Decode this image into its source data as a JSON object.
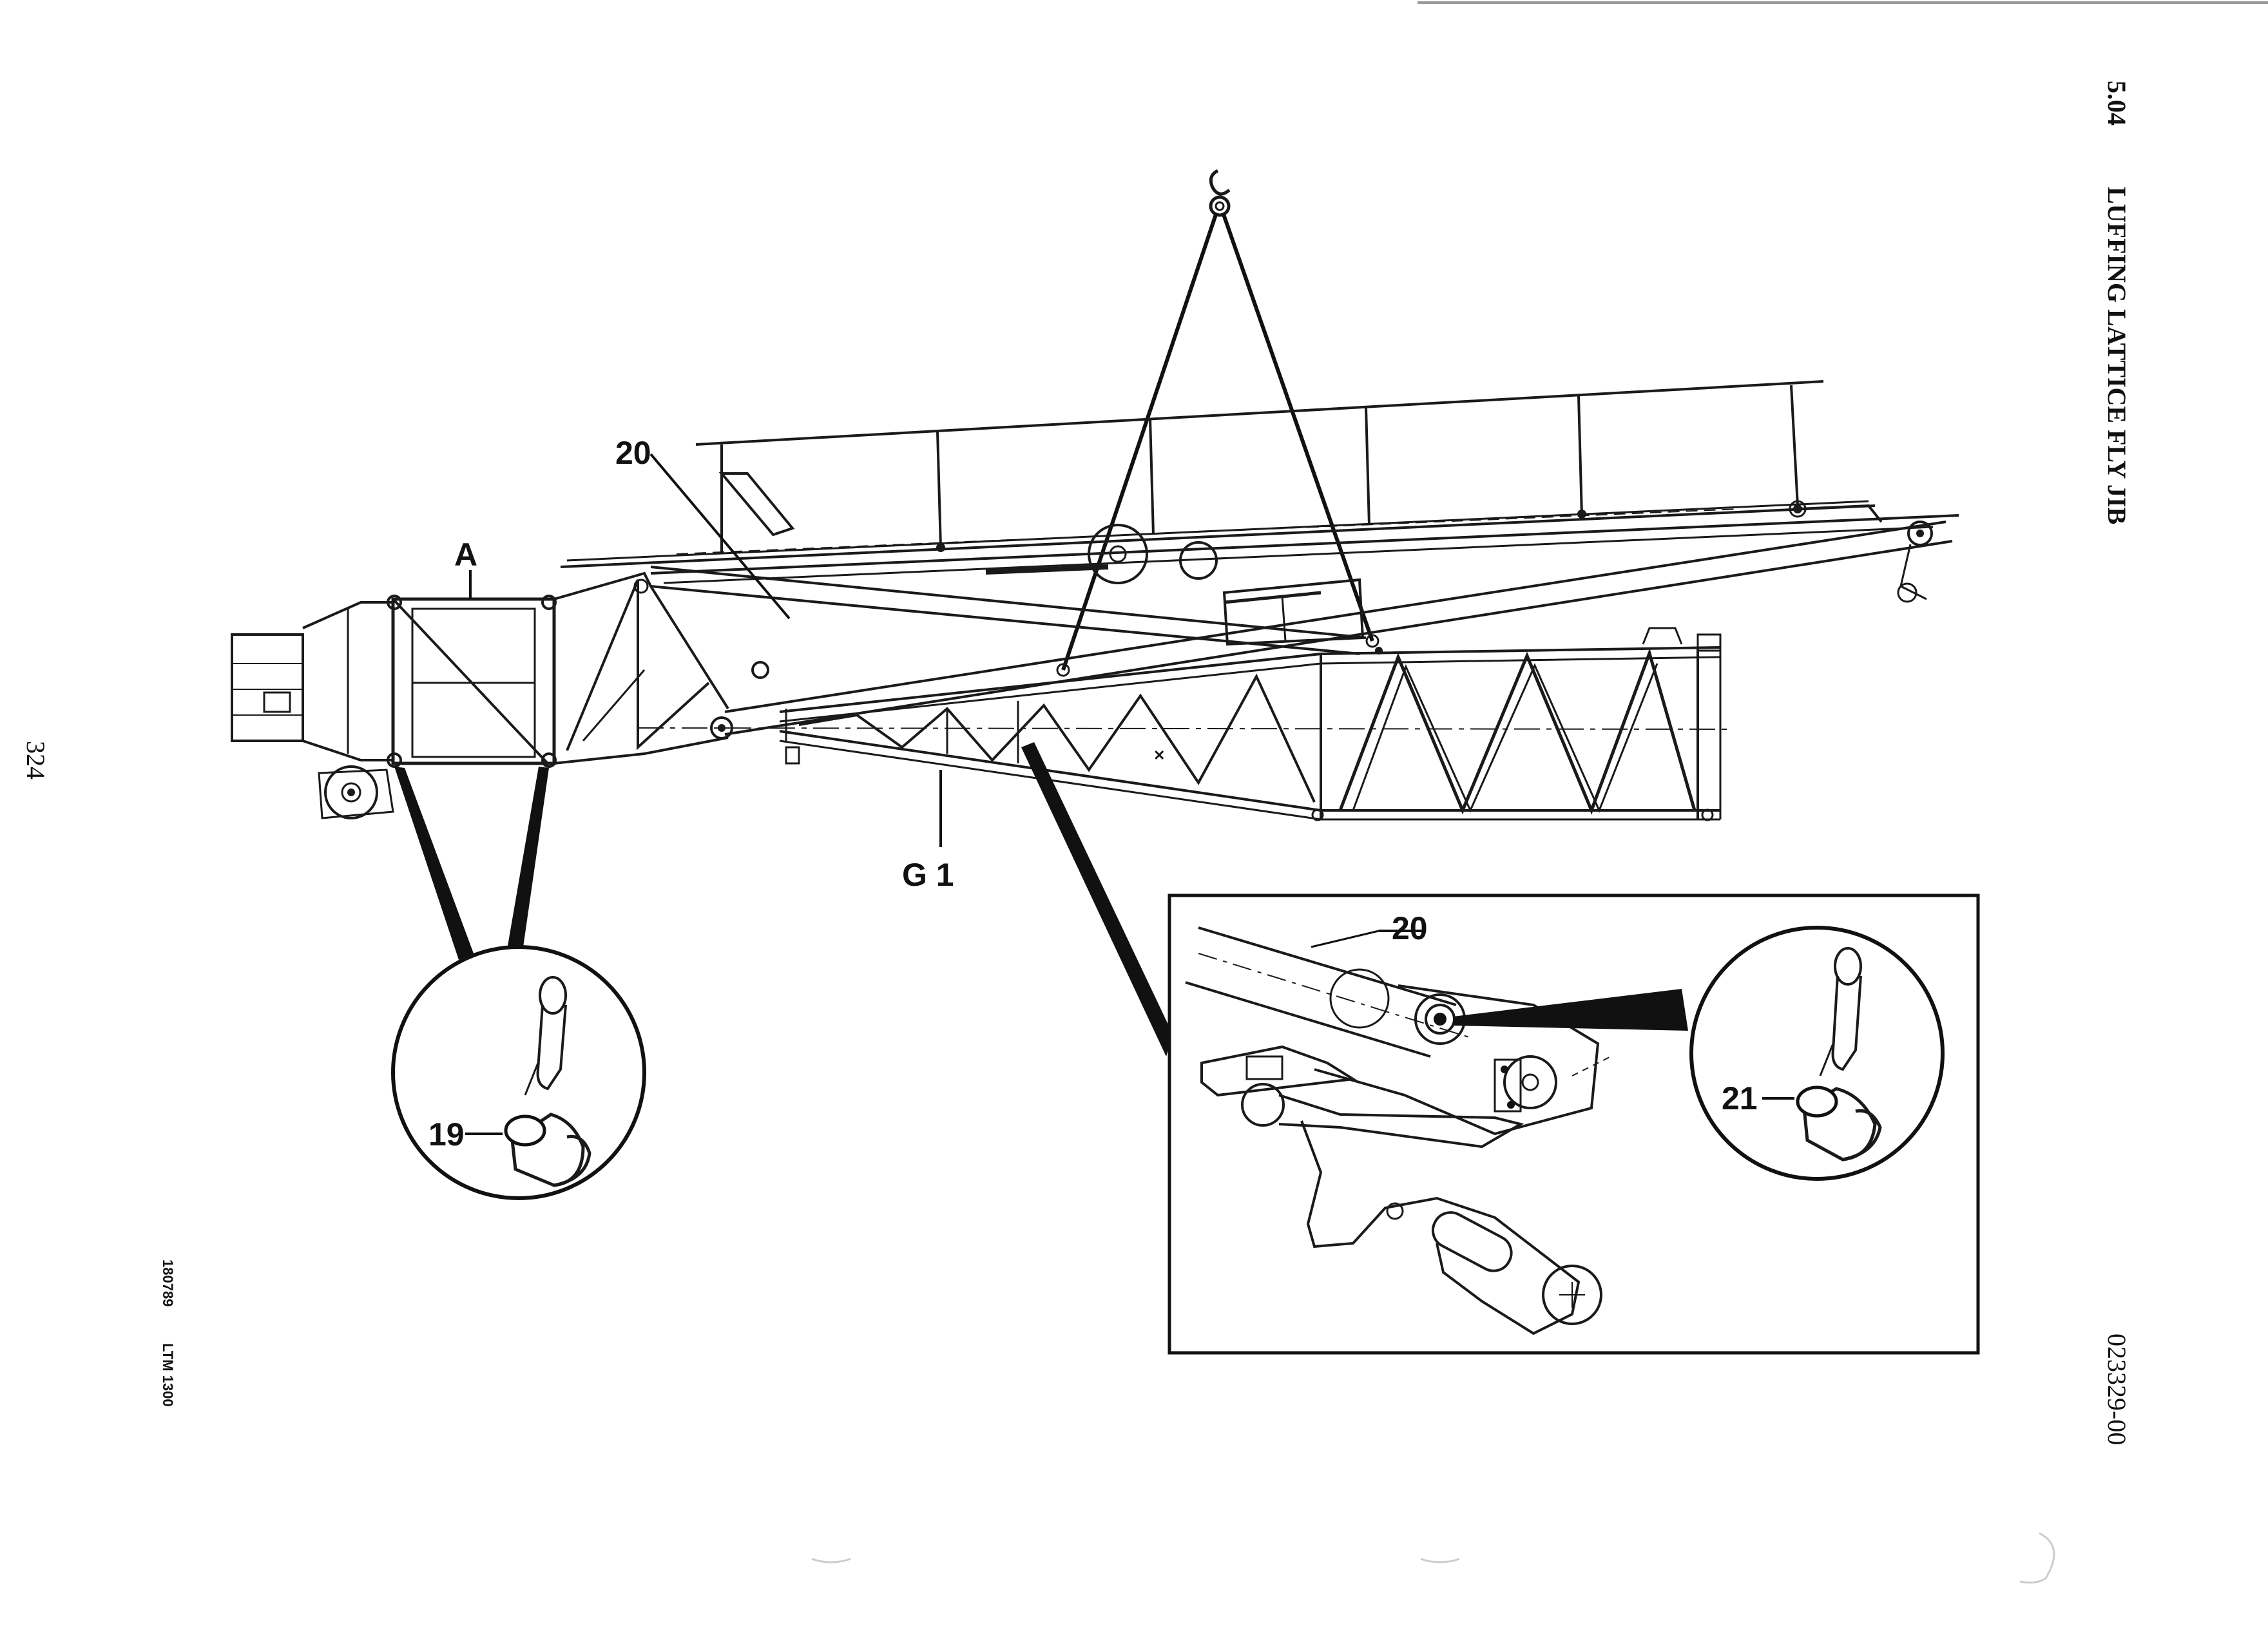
{
  "header": {
    "section_number": "5.04",
    "section_title": "LUFFING LATTICE FLY JIB"
  },
  "page_number": "324",
  "footer": {
    "date_code": "180789",
    "model": "LTM 1300",
    "drawing_number": "023329-00"
  },
  "callouts": {
    "a": "A",
    "item_20_main": "20",
    "g1": "G 1",
    "item_19": "19",
    "item_20_detail": "20",
    "item_21": "21"
  }
}
